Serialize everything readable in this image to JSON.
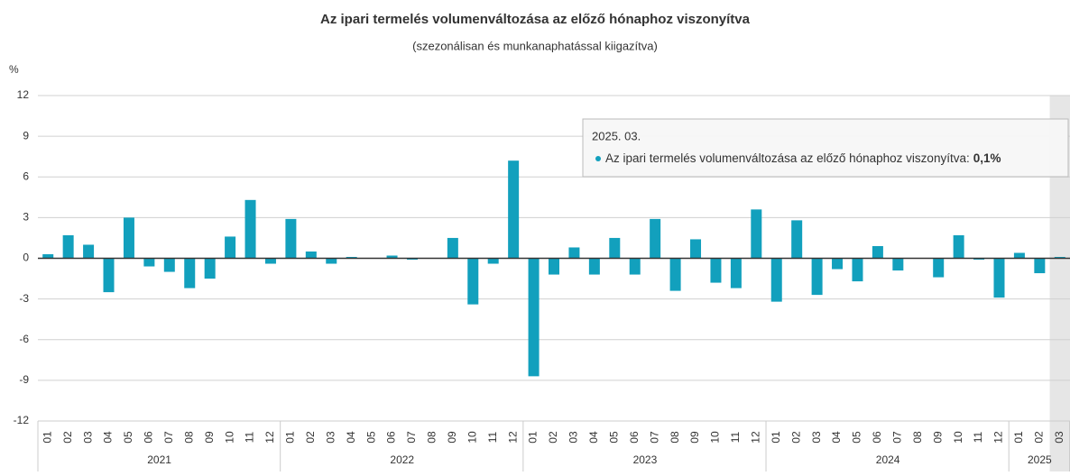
{
  "chart_data": {
    "type": "bar",
    "title": "Az ipari termelés volumenváltozása az előző hónaphoz viszonyítva",
    "subtitle": "(szezonálisan és munkanaphatással kiigazítva)",
    "y_label": "%",
    "groups": [
      {
        "label": "2021",
        "months": [
          "01",
          "02",
          "03",
          "04",
          "05",
          "06",
          "07",
          "08",
          "09",
          "10",
          "11",
          "12"
        ]
      },
      {
        "label": "2022",
        "months": [
          "01",
          "02",
          "03",
          "04",
          "05",
          "06",
          "07",
          "08",
          "09",
          "10",
          "11",
          "12"
        ]
      },
      {
        "label": "2023",
        "months": [
          "01",
          "02",
          "03",
          "04",
          "05",
          "06",
          "07",
          "08",
          "09",
          "10",
          "11",
          "12"
        ]
      },
      {
        "label": "2024",
        "months": [
          "01",
          "02",
          "03",
          "04",
          "05",
          "06",
          "07",
          "08",
          "09",
          "10",
          "11",
          "12"
        ]
      },
      {
        "label": "2025",
        "months": [
          "01",
          "02",
          "03"
        ]
      }
    ],
    "values": [
      0.3,
      1.7,
      1.0,
      -2.5,
      3.0,
      -0.6,
      -1.0,
      -2.2,
      -1.5,
      1.6,
      4.3,
      -0.4,
      2.9,
      0.5,
      -0.4,
      0.1,
      0.0,
      0.2,
      -0.1,
      0.0,
      1.5,
      -3.4,
      -0.4,
      7.2,
      -8.7,
      -1.2,
      0.8,
      -1.2,
      1.5,
      -1.2,
      2.9,
      -2.4,
      1.4,
      -1.8,
      -2.2,
      3.6,
      -3.2,
      2.8,
      -2.7,
      -0.8,
      -1.7,
      0.9,
      -0.9,
      0.0,
      -1.4,
      1.7,
      -0.1,
      -2.9,
      0.4,
      -1.1,
      0.1
    ],
    "color": "#12a0bd",
    "ylim": [
      -12,
      12
    ],
    "yticks": [
      -12,
      -9,
      -6,
      -3,
      0,
      3,
      6,
      9,
      12
    ],
    "grid": true,
    "tooltip": {
      "heading": "2025. 03.",
      "text": "Az ipari termelés volumenváltozása az előző hónaphoz viszonyítva:",
      "value_label": "0,1%"
    }
  }
}
